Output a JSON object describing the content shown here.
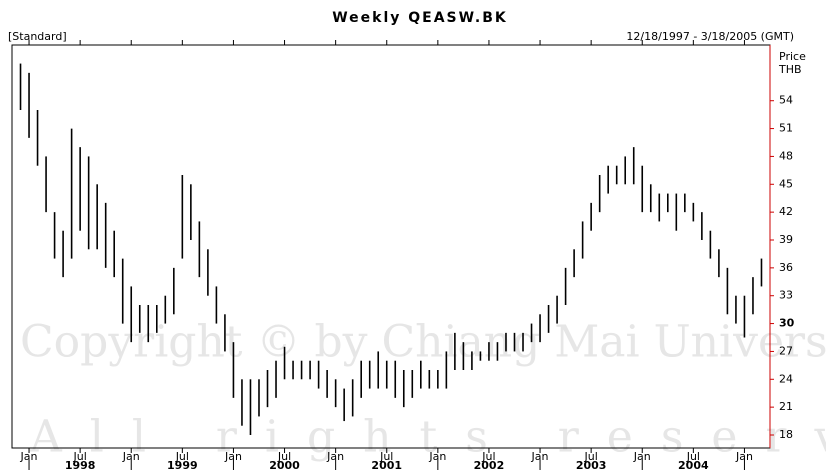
{
  "chart_data": {
    "type": "range_bar",
    "title": "Weekly QEASW.BK",
    "subtitle": "12/18/1997 - 3/18/2005 (GMT)",
    "style_label": "[Standard]",
    "y_label": [
      "Price",
      "THB"
    ],
    "watermark": [
      "Copyright © by Chiang Mai University",
      "All rights reserved"
    ],
    "color": "#000000",
    "axis_color": "#cc0000",
    "x": [
      "1997-12",
      "1998-01",
      "1998-02",
      "1998-03",
      "1998-04",
      "1998-05",
      "1998-06",
      "1998-07",
      "1998-08",
      "1998-09",
      "1998-10",
      "1998-11",
      "1998-12",
      "1999-01",
      "1999-02",
      "1999-03",
      "1999-04",
      "1999-05",
      "1999-06",
      "1999-07",
      "1999-08",
      "1999-09",
      "1999-10",
      "1999-11",
      "1999-12",
      "2000-01",
      "2000-02",
      "2000-03",
      "2000-04",
      "2000-05",
      "2000-06",
      "2000-07",
      "2000-08",
      "2000-09",
      "2000-10",
      "2000-11",
      "2000-12",
      "2001-01",
      "2001-02",
      "2001-03",
      "2001-04",
      "2001-05",
      "2001-06",
      "2001-07",
      "2001-08",
      "2001-09",
      "2001-10",
      "2001-11",
      "2001-12",
      "2002-01",
      "2002-02",
      "2002-03",
      "2002-04",
      "2002-05",
      "2002-06",
      "2002-07",
      "2002-08",
      "2002-09",
      "2002-10",
      "2002-11",
      "2002-12",
      "2003-01",
      "2003-02",
      "2003-03",
      "2003-04",
      "2003-05",
      "2003-06",
      "2003-07",
      "2003-08",
      "2003-09",
      "2003-10",
      "2003-11",
      "2003-12",
      "2004-01",
      "2004-02",
      "2004-03",
      "2004-04",
      "2004-05",
      "2004-06",
      "2004-07",
      "2004-08",
      "2004-09",
      "2004-10",
      "2004-11",
      "2004-12",
      "2005-01",
      "2005-02",
      "2005-03"
    ],
    "high": [
      58,
      57,
      53,
      48,
      42,
      40,
      51,
      49,
      48,
      45,
      43,
      40,
      37,
      34,
      32,
      32,
      32,
      33,
      36,
      46,
      45,
      41,
      38,
      34,
      31,
      28,
      24,
      24,
      24,
      25,
      26,
      27.5,
      26,
      26,
      26,
      26,
      25,
      24,
      23,
      24,
      26,
      26,
      27,
      26,
      26,
      25,
      25,
      26,
      25,
      25,
      27,
      29,
      28,
      27,
      27,
      28,
      28,
      29,
      29,
      29,
      30,
      31,
      32,
      33,
      36,
      38,
      41,
      43,
      46,
      47,
      47,
      48,
      49,
      47,
      45,
      44,
      44,
      44,
      44,
      43,
      42,
      40,
      38,
      36,
      33,
      33,
      35,
      37
    ],
    "low": [
      53,
      50,
      47,
      42,
      37,
      35,
      37,
      40,
      38,
      38,
      36,
      35,
      30,
      28,
      29,
      28,
      29,
      30,
      31,
      37,
      39,
      35,
      33,
      30,
      27,
      22,
      19,
      18,
      20,
      21,
      22,
      24,
      24,
      24,
      24,
      23,
      22,
      21,
      19.5,
      20,
      22,
      23,
      23,
      23,
      22,
      21,
      22,
      23,
      23,
      23,
      23,
      25,
      25,
      25,
      26,
      26,
      26,
      27,
      27,
      27,
      28,
      28,
      29,
      30,
      32,
      35,
      37,
      40,
      42,
      44,
      45,
      45,
      45,
      42,
      42,
      41,
      42,
      40,
      42,
      41,
      39,
      37,
      35,
      31,
      30,
      28.5,
      31,
      34
    ],
    "xlim": [
      "1997-11",
      "2005-04"
    ],
    "xticks": [
      {
        "value": "1998-01",
        "label": "Jan"
      },
      {
        "value": "1998-07",
        "label": "Jul"
      },
      {
        "value": "1999-01",
        "label": "Jan"
      },
      {
        "value": "1999-07",
        "label": "Jul"
      },
      {
        "value": "2000-01",
        "label": "Jan"
      },
      {
        "value": "2000-07",
        "label": "Jul"
      },
      {
        "value": "2001-01",
        "label": "Jan"
      },
      {
        "value": "2001-07",
        "label": "Jul"
      },
      {
        "value": "2002-01",
        "label": "Jan"
      },
      {
        "value": "2002-07",
        "label": "Jul"
      },
      {
        "value": "2003-01",
        "label": "Jan"
      },
      {
        "value": "2003-07",
        "label": "Jul"
      },
      {
        "value": "2004-01",
        "label": "Jan"
      },
      {
        "value": "2004-07",
        "label": "Jul"
      },
      {
        "value": "2005-01",
        "label": "Jan"
      }
    ],
    "years": [
      {
        "value": "1998-07",
        "label": "1998"
      },
      {
        "value": "1999-07",
        "label": "1999"
      },
      {
        "value": "2000-07",
        "label": "2000"
      },
      {
        "value": "2001-07",
        "label": "2001"
      },
      {
        "value": "2002-07",
        "label": "2002"
      },
      {
        "value": "2003-07",
        "label": "2003"
      },
      {
        "value": "2004-07",
        "label": "2004"
      }
    ],
    "ylim": [
      16.6,
      60
    ],
    "yticks": [
      18,
      21,
      24,
      27,
      30,
      33,
      36,
      39,
      42,
      45,
      48,
      51,
      54
    ],
    "bold_ytick": 30
  }
}
